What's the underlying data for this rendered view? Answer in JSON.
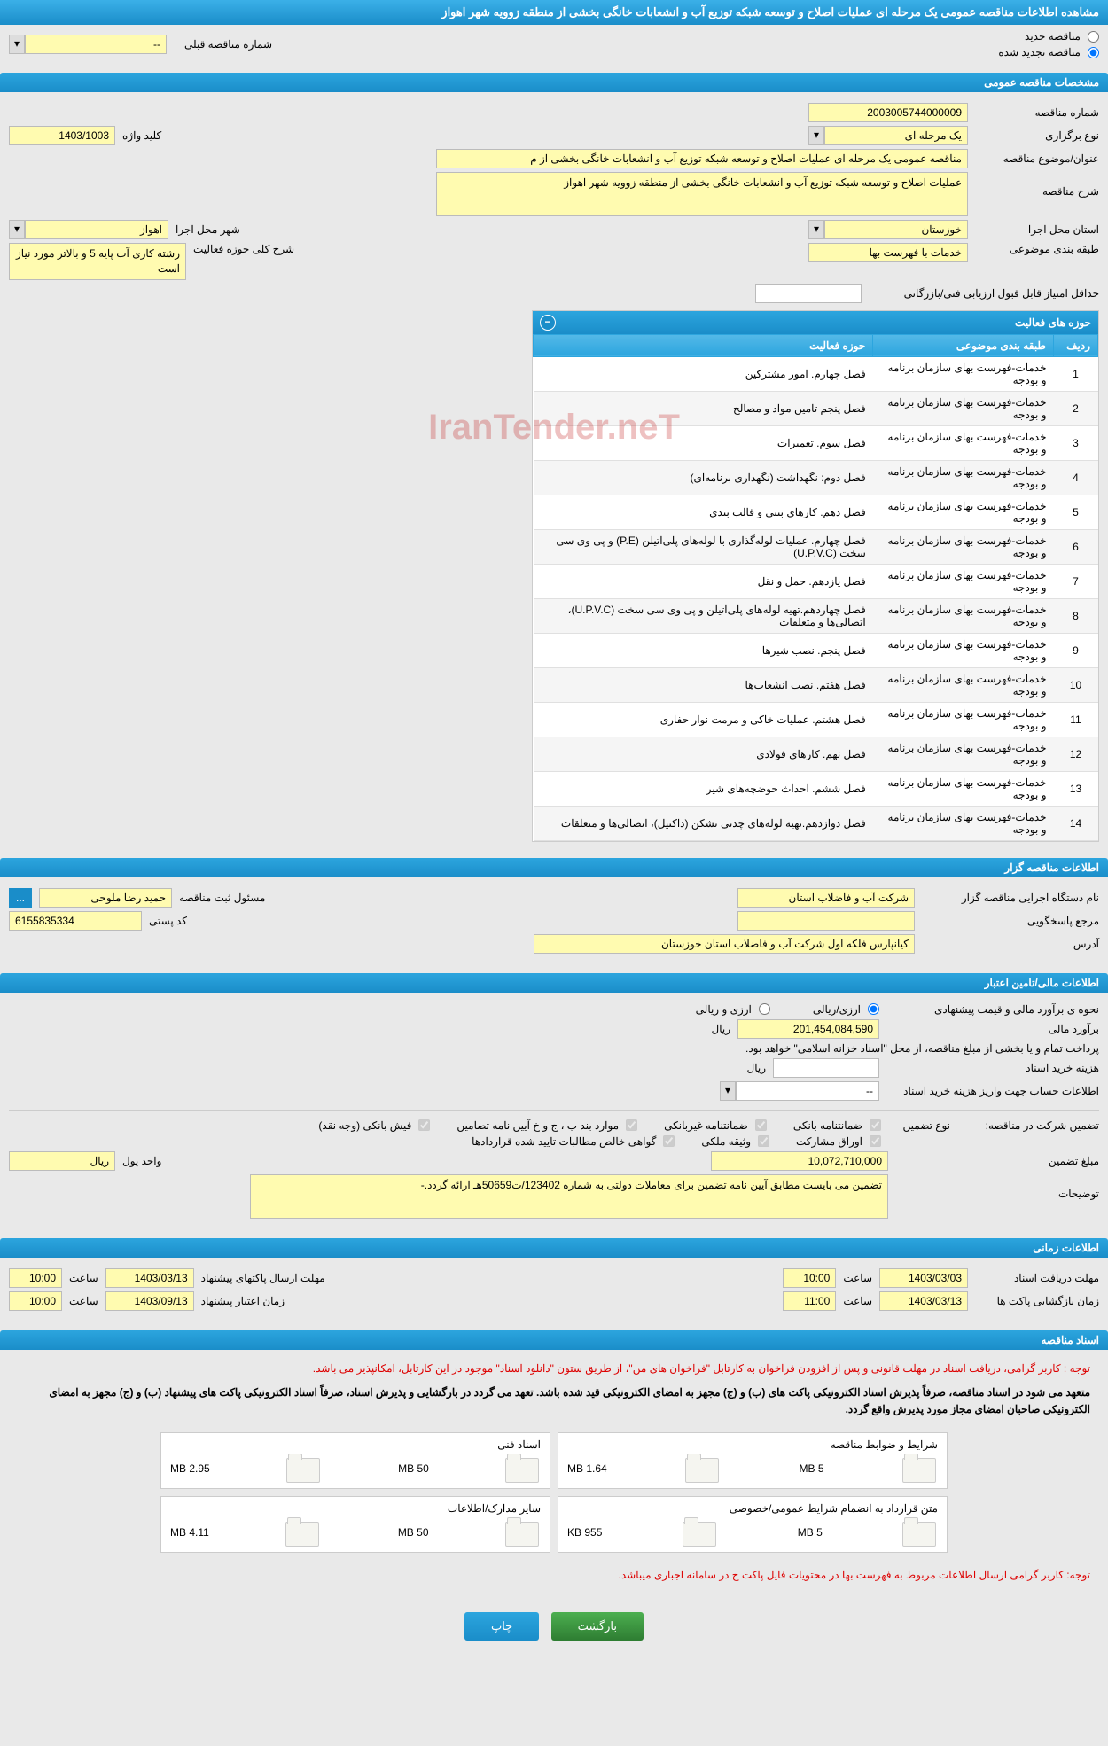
{
  "header": {
    "title": "مشاهده اطلاعات مناقصه عمومی یک مرحله ای عملیات اصلاح و توسعه شبکه توزیع آب و انشعابات خانگی بخشی از منطقه زوویه شهر اهواز"
  },
  "tender_type": {
    "new_label": "مناقصه جدید",
    "renewed_label": "مناقصه تجدید شده",
    "prev_number_label": "شماره مناقصه قبلی",
    "prev_number_value": "--"
  },
  "general": {
    "section_title": "مشخصات مناقصه عمومی",
    "number_label": "شماره مناقصه",
    "number_value": "2003005744000009",
    "type_label": "نوع برگزاری",
    "type_value": "یک مرحله ای",
    "keyword_label": "کلید واژه",
    "keyword_value": "1403/1003",
    "subject_label": "عنوان/موضوع مناقصه",
    "subject_value": "مناقصه عمومی یک مرحله ای عملیات اصلاح و توسعه شبکه توزیع آب و انشعابات خانگی بخشی از م",
    "desc_label": "شرح مناقصه",
    "desc_value": "عملیات اصلاح و توسعه شبکه توزیع آب و انشعابات خانگی بخشی از منطقه زوویه شهر اهواز",
    "province_label": "استان محل اجرا",
    "province_value": "خوزستان",
    "city_label": "شهر محل اجرا",
    "city_value": "اهواز",
    "category_label": "طبقه بندی موضوعی",
    "category_value": "خدمات با فهرست بها",
    "activity_scope_label": "شرح کلی حوزه فعالیت",
    "activity_scope_value": "رشته کاری آب پایه 5 و بالاتر مورد نیاز است",
    "min_score_label": "حداقل امتیاز قابل قبول ارزیابی فنی/بازرگانی"
  },
  "activity_table": {
    "title": "حوزه های فعالیت",
    "columns": [
      "ردیف",
      "طبقه بندی موضوعی",
      "حوزه فعالیت"
    ],
    "rows": [
      [
        "1",
        "خدمات-فهرست بهای سازمان برنامه و بودجه",
        "فصل چهارم. امور مشترکین"
      ],
      [
        "2",
        "خدمات-فهرست بهای سازمان برنامه و بودجه",
        "فصل پنجم تامین مواد و مصالح"
      ],
      [
        "3",
        "خدمات-فهرست بهای سازمان برنامه و بودجه",
        "فصل سوم. تعمیرات"
      ],
      [
        "4",
        "خدمات-فهرست بهای سازمان برنامه و بودجه",
        "فصل دوم: نگهداشت (نگهداری برنامه‌ای)"
      ],
      [
        "5",
        "خدمات-فهرست بهای سازمان برنامه و بودجه",
        "فصل دهم. کارهای بتنی و قالب بندی"
      ],
      [
        "6",
        "خدمات-فهرست بهای سازمان برنامه و بودجه",
        "فصل چهارم. عملیات لوله‌گذاری با لوله‌های پلی‌اتیلن (P.E) و پی وی سی سخت (U.P.V.C)"
      ],
      [
        "7",
        "خدمات-فهرست بهای سازمان برنامه و بودجه",
        "فصل یازدهم. حمل و نقل"
      ],
      [
        "8",
        "خدمات-فهرست بهای سازمان برنامه و بودجه",
        "فصل چهاردهم.تهیه لوله‌های پلی‌اتیلن و پی وی سی سخت (U.P.V.C)، اتصالی‌ها و متعلقات"
      ],
      [
        "9",
        "خدمات-فهرست بهای سازمان برنامه و بودجه",
        "فصل پنجم. نصب شیرها"
      ],
      [
        "10",
        "خدمات-فهرست بهای سازمان برنامه و بودجه",
        "فصل هفتم. نصب انشعاب‌ها"
      ],
      [
        "11",
        "خدمات-فهرست بهای سازمان برنامه و بودجه",
        "فصل هشتم. عملیات خاکی و مرمت نوار حفاری"
      ],
      [
        "12",
        "خدمات-فهرست بهای سازمان برنامه و بودجه",
        "فصل نهم. کارهای فولادی"
      ],
      [
        "13",
        "خدمات-فهرست بهای سازمان برنامه و بودجه",
        "فصل ششم. احداث حوضچه‌های شیر"
      ],
      [
        "14",
        "خدمات-فهرست بهای سازمان برنامه و بودجه",
        "فصل دوازدهم.تهیه لوله‌های چدنی نشکن (داکتیل)، اتصالی‌ها و متعلقات"
      ]
    ]
  },
  "organizer": {
    "section_title": "اطلاعات مناقصه گزار",
    "org_label": "نام دستگاه اجرایی مناقصه گزار",
    "org_value": "شرکت آب و فاضلاب استان",
    "responsible_label": "مسئول ثبت مناقصه",
    "responsible_value": "حمید رضا ملوحی",
    "contact_label": "مرجع پاسخگویی",
    "postal_label": "کد پستی",
    "postal_value": "6155835334",
    "address_label": "آدرس",
    "address_value": "کیانپارس فلکه اول شرکت آب و فاضلاب استان خوزستان",
    "more_btn": "..."
  },
  "financial": {
    "section_title": "اطلاعات مالی/تامین اعتبار",
    "method_label": "نحوه ی برآورد مالی و قیمت پیشنهادی",
    "method_rial": "ارزی/ریالی",
    "method_both": "ارزی و ریالی",
    "estimate_label": "برآورد مالی",
    "estimate_value": "201,454,084,590",
    "currency": "ریال",
    "payment_note": "پرداخت تمام و یا بخشی از مبلغ مناقصه، از محل \"اسناد خزانه اسلامی\" خواهد بود.",
    "doc_cost_label": "هزینه خرید اسناد",
    "account_label": "اطلاعات حساب جهت واریز هزینه خرید اسناد",
    "account_value": "--"
  },
  "guarantee": {
    "participation_label": "تضمین شرکت در مناقصه:",
    "type_label": "نوع تضمین",
    "opts": [
      "ضمانتنامه بانکی",
      "ضمانتنامه غیربانکی",
      "موارد بند ب ، ج و خ آیین نامه تضامین",
      "فیش بانکی (وجه نقد)",
      "اوراق مشارکت",
      "وثیقه ملکی",
      "گواهی خالص مطالبات تایید شده قراردادها"
    ],
    "amount_label": "مبلغ تضمین",
    "amount_value": "10,072,710,000",
    "unit_label": "واحد پول",
    "unit_value": "ریال",
    "desc_label": "توضیحات",
    "desc_value": "تضمین می بایست مطابق آیین نامه تضمین برای معاملات دولتی به شماره 123402/ت50659هـ ارائه گردد.-"
  },
  "timing": {
    "section_title": "اطلاعات زمانی",
    "receive_label": "مهلت دریافت اسناد",
    "receive_date": "1403/03/03",
    "receive_time_label": "ساعت",
    "receive_time": "10:00",
    "send_label": "مهلت ارسال پاکتهای پیشنهاد",
    "send_date": "1403/03/13",
    "send_time": "10:00",
    "open_label": "زمان بازگشایی پاکت ها",
    "open_date": "1403/03/13",
    "open_time": "11:00",
    "validity_label": "زمان اعتبار پیشنهاد",
    "validity_date": "1403/09/13",
    "validity_time": "10:00"
  },
  "documents": {
    "section_title": "اسناد مناقصه",
    "note1": "توجه : کاربر گرامی، دریافت اسناد در مهلت قانونی و پس از افزودن فراخوان به کارتابل \"فراخوان های من\"، از طریق ستون \"دانلود اسناد\" موجود در این کارتابل، امکانپذیر می باشد.",
    "note2": "متعهد می شود در اسناد مناقصه، صرفاً پذیرش اسناد الکترونیکی پاکت های (ب) و (ج) مجهز به امضای الکترونیکی قید شده باشد. تعهد می گردد در بارگشایی و پذیرش اسناد، صرفاً اسناد الکترونیکی پاکت های پیشنهاد (ب) و (ج) مجهز به امضای الکترونیکی صاحبان امضای مجاز مورد پذیرش واقع گردد.",
    "files": [
      {
        "title": "شرایط و ضوابط مناقصه",
        "max": "5 MB",
        "used": "1.64 MB"
      },
      {
        "title": "اسناد فنی",
        "max": "50 MB",
        "used": "2.95 MB"
      },
      {
        "title": "متن قرارداد به انضمام شرایط عمومی/خصوصی",
        "max": "5 MB",
        "used": "955 KB"
      },
      {
        "title": "سایر مدارک/اطلاعات",
        "max": "50 MB",
        "used": "4.11 MB"
      }
    ],
    "note3": "توجه: کاربر گرامی ارسال اطلاعات مربوط به فهرست بها در محتویات فایل پاکت ج در سامانه اجباری میباشد."
  },
  "buttons": {
    "back": "بازگشت",
    "print": "چاپ"
  },
  "watermark": "IranTender.neT"
}
